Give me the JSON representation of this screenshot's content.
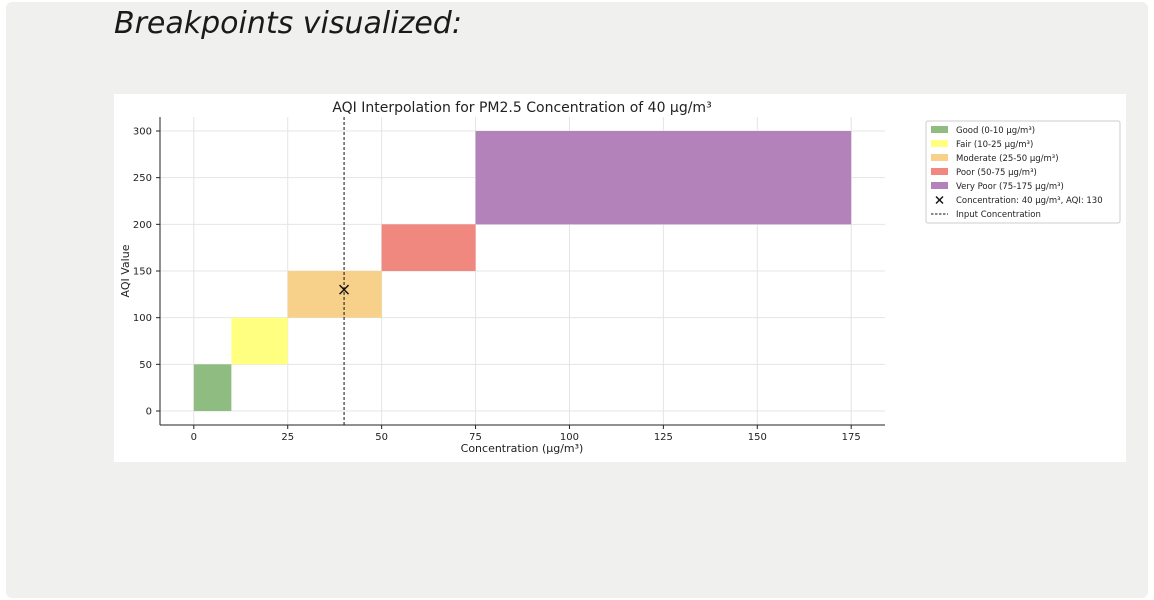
{
  "page": {
    "heading": "Breakpoints visualized:"
  },
  "colors": {
    "panel_background": "#f0f0ee",
    "figure_background": "#ffffff"
  },
  "chart_data": {
    "type": "bar",
    "title": "AQI Interpolation for PM2.5 Concentration of 40 µg/m³",
    "xlabel": "Concentration (µg/m³)",
    "ylabel": "AQI Value",
    "xlim": [
      -9,
      184
    ],
    "ylim": [
      -15,
      315
    ],
    "xticks": [
      0,
      25,
      50,
      75,
      100,
      125,
      150,
      175
    ],
    "yticks": [
      0,
      50,
      100,
      150,
      200,
      250,
      300
    ],
    "grid": true,
    "legend_position": "outside-right-top",
    "bands": [
      {
        "label": "Good (0-10 µg/m³)",
        "x0": 0,
        "x1": 10,
        "y0": 0,
        "y1": 50,
        "color": "#8fbc80"
      },
      {
        "label": "Fair (10-25 µg/m³)",
        "x0": 10,
        "x1": 25,
        "y0": 50,
        "y1": 100,
        "color": "#ffff80"
      },
      {
        "label": "Moderate (25-50 µg/m³)",
        "x0": 25,
        "x1": 50,
        "y0": 100,
        "y1": 150,
        "color": "#f7d08a"
      },
      {
        "label": "Poor (50-75 µg/m³)",
        "x0": 50,
        "x1": 75,
        "y0": 150,
        "y1": 200,
        "color": "#f08880"
      },
      {
        "label": "Very Poor (75-175 µg/m³)",
        "x0": 75,
        "x1": 175,
        "y0": 200,
        "y1": 300,
        "color": "#b382bb"
      }
    ],
    "point": {
      "label": "Concentration: 40 µg/m³, AQI: 130",
      "x": 40,
      "y": 130,
      "marker": "x"
    },
    "vline": {
      "label": "Input Concentration",
      "x": 40,
      "style": "dashed"
    }
  }
}
